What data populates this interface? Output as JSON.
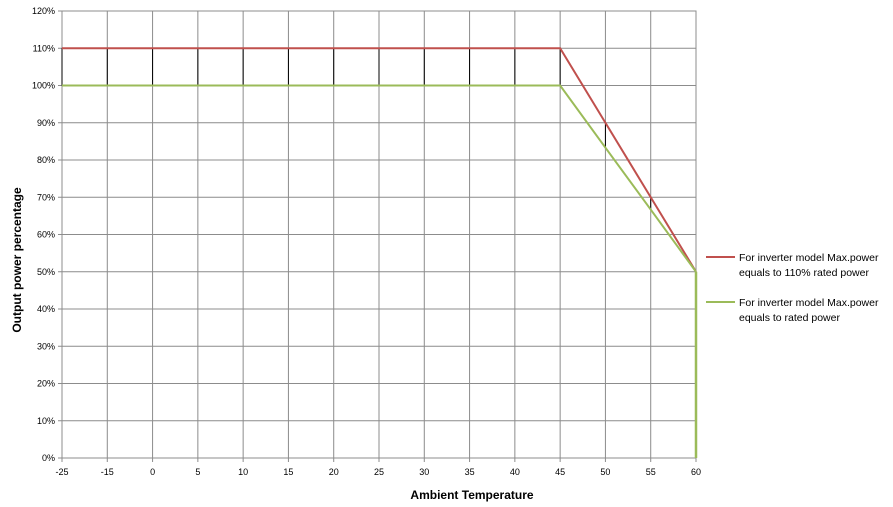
{
  "chart_data": {
    "type": "line",
    "title": "",
    "xlabel": "Ambient Temperature",
    "ylabel": "Output power percentage",
    "x_ticks": [
      "-25",
      "-15",
      "0",
      "5",
      "10",
      "15",
      "20",
      "25",
      "30",
      "35",
      "40",
      "45",
      "50",
      "55",
      "60"
    ],
    "y_ticks": [
      "0%",
      "10%",
      "20%",
      "30%",
      "40%",
      "50%",
      "60%",
      "70%",
      "80%",
      "90%",
      "100%",
      "110%",
      "120%"
    ],
    "ylim": [
      0,
      120
    ],
    "grid": true,
    "legend_position": "right",
    "series": [
      {
        "name_lines": [
          "For inverter model Max.power",
          "equals to 110% rated power"
        ],
        "color": "#c0504d",
        "x": [
          "-25",
          "-15",
          "0",
          "5",
          "10",
          "15",
          "20",
          "25",
          "30",
          "35",
          "40",
          "45",
          "50",
          "55",
          "60"
        ],
        "values": [
          110,
          110,
          110,
          110,
          110,
          110,
          110,
          110,
          110,
          110,
          110,
          110,
          90,
          70,
          50
        ]
      },
      {
        "name_lines": [
          "For inverter model Max.power",
          "equals to rated power"
        ],
        "color": "#9bbb59",
        "x": [
          "-25",
          "-15",
          "0",
          "5",
          "10",
          "15",
          "20",
          "25",
          "30",
          "35",
          "40",
          "45",
          "50",
          "55",
          "60"
        ],
        "values": [
          100,
          100,
          100,
          100,
          100,
          100,
          100,
          100,
          100,
          100,
          100,
          100,
          83.3,
          66.7,
          50
        ]
      }
    ],
    "extra_segment": {
      "color": "#9bbb59",
      "x": "60",
      "from": 50,
      "to": 0
    }
  }
}
